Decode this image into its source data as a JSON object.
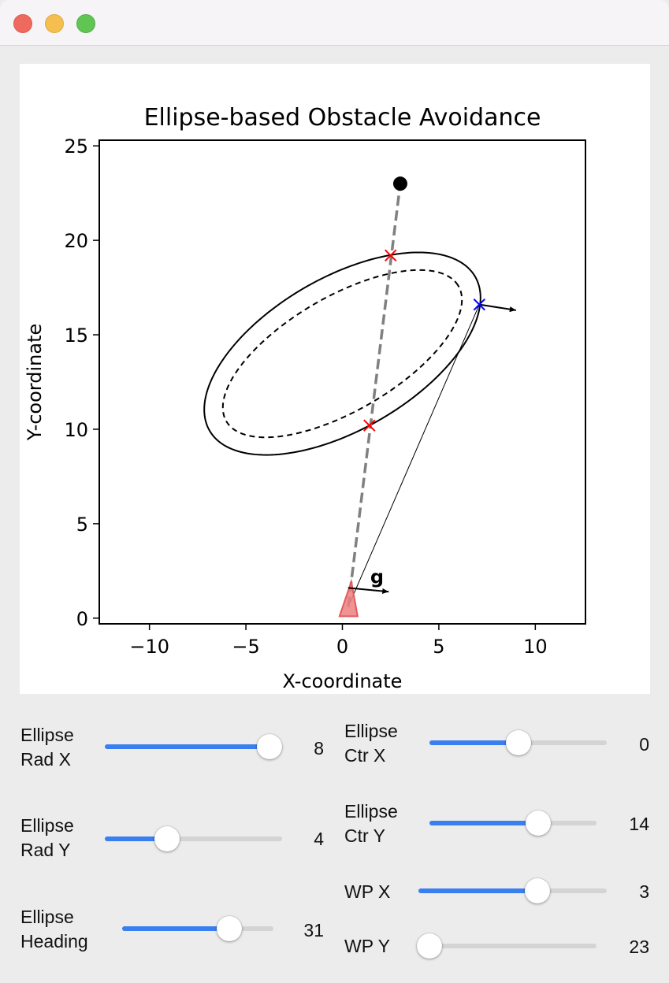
{
  "window": {
    "controls": [
      "close",
      "minimize",
      "zoom"
    ],
    "colors": {
      "close": "#ee6a5e",
      "minimize": "#f5bf4f",
      "zoom": "#61c554"
    }
  },
  "chart_data": {
    "type": "line",
    "title": "Ellipse-based Obstacle Avoidance",
    "xlabel": "X-coordinate",
    "ylabel": "Y-coordinate",
    "xlim": [
      -12.6,
      12.6
    ],
    "ylim": [
      -0.3,
      25.3
    ],
    "xticks": [
      -10,
      -5,
      0,
      5,
      10
    ],
    "xtick_labels": [
      "−10",
      "−5",
      "0",
      "5",
      "10"
    ],
    "yticks": [
      0,
      5,
      10,
      15,
      20,
      25
    ],
    "ytick_labels": [
      "0",
      "5",
      "10",
      "15",
      "20",
      "25"
    ],
    "grid": false,
    "aspect": "equal",
    "outer_ellipse": {
      "center": [
        0,
        14
      ],
      "radius_x": 8,
      "radius_y": 4,
      "heading_deg": 31,
      "style": "solid",
      "color": "#000000"
    },
    "inner_ellipse": {
      "center": [
        0,
        14
      ],
      "radius_x": 7,
      "radius_y": 3,
      "heading_deg": 31,
      "style": "dashed",
      "color": "#000000"
    },
    "waypoint": {
      "x": 3,
      "y": 23,
      "color": "#000000"
    },
    "vehicle": {
      "x": 0.3,
      "y": 0.6,
      "color": "#f08080"
    },
    "path_line": {
      "from": [
        0.3,
        0.6
      ],
      "to": [
        3,
        23
      ],
      "color": "#808080",
      "style": "dashed"
    },
    "intersections": [
      {
        "x": 2.5,
        "y": 19.2,
        "color": "#ff0000",
        "marker": "x"
      },
      {
        "x": 1.4,
        "y": 10.2,
        "color": "#ff0000",
        "marker": "x"
      }
    ],
    "tangent_point": {
      "x": 7.1,
      "y": 16.6,
      "color": "#0000ff",
      "marker": "x"
    },
    "tangent_line": {
      "from": [
        0.3,
        0.6
      ],
      "to": [
        7.1,
        16.6
      ],
      "color": "#000000"
    },
    "arrows": [
      {
        "from": [
          7.1,
          16.6
        ],
        "to": [
          9.0,
          16.3
        ]
      },
      {
        "from": [
          0.3,
          1.6
        ],
        "to": [
          2.4,
          1.4
        ],
        "label": "g"
      }
    ]
  },
  "controls": {
    "ellipse_rad_x": {
      "label": "Ellipse\nRad X",
      "value": "8",
      "fraction": 0.93
    },
    "ellipse_rad_y": {
      "label": "Ellipse\nRad Y",
      "value": "4",
      "fraction": 0.35
    },
    "ellipse_heading": {
      "label": "Ellipse\nHeading",
      "value": "31",
      "fraction": 0.71
    },
    "ellipse_ctr_x": {
      "label": "Ellipse\nCtr X",
      "value": "0",
      "fraction": 0.5
    },
    "ellipse_ctr_y": {
      "label": "Ellipse\nCtr Y",
      "value": "14",
      "fraction": 0.65
    },
    "wp_x": {
      "label": "WP X",
      "value": "3",
      "fraction": 0.63
    },
    "wp_y": {
      "label": "WP Y",
      "value": "23",
      "fraction": 0.0
    },
    "accent_color": "#3a7ff0"
  }
}
